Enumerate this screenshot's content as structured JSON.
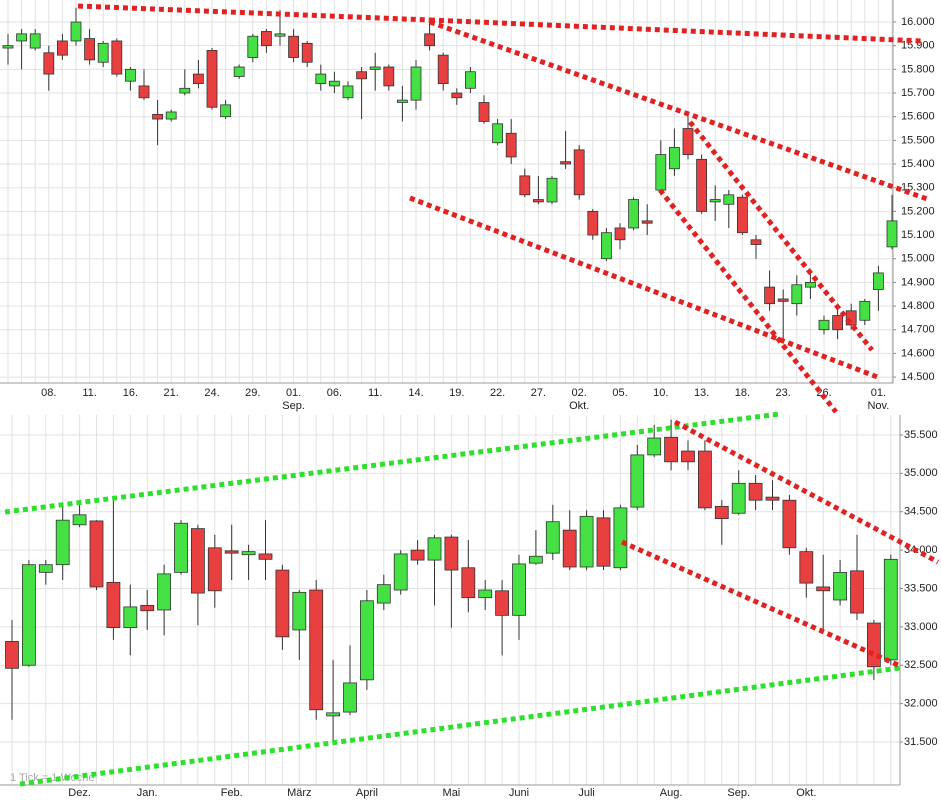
{
  "chart_data": [
    {
      "type": "candlestick",
      "categories": [
        null,
        null,
        null,
        "08.",
        null,
        null,
        "11.",
        null,
        null,
        "16.",
        null,
        null,
        "21.",
        null,
        null,
        "24.",
        null,
        null,
        "29.",
        null,
        null,
        "01.",
        null,
        null,
        "06.",
        null,
        null,
        "11.",
        null,
        null,
        "14.",
        null,
        null,
        "19.",
        null,
        null,
        "22.",
        null,
        null,
        "27.",
        null,
        null,
        "02.",
        null,
        null,
        "05.",
        null,
        null,
        "10.",
        null,
        null,
        "13.",
        null,
        null,
        "18.",
        null,
        null,
        "23.",
        null,
        null,
        "26.",
        null,
        null,
        null,
        "01.",
        null
      ],
      "months": [
        null,
        null,
        null,
        null,
        null,
        null,
        null,
        null,
        null,
        null,
        null,
        null,
        null,
        null,
        null,
        null,
        null,
        null,
        null,
        null,
        null,
        "Sep.",
        null,
        null,
        null,
        null,
        null,
        null,
        null,
        null,
        null,
        null,
        null,
        null,
        null,
        null,
        null,
        null,
        null,
        null,
        null,
        null,
        "Okt.",
        null,
        null,
        null,
        null,
        null,
        null,
        null,
        null,
        null,
        null,
        null,
        null,
        null,
        null,
        null,
        null,
        null,
        null,
        null,
        null,
        null,
        "Nov.",
        null
      ],
      "open": [
        15.89,
        15.92,
        15.89,
        15.87,
        15.92,
        15.92,
        15.93,
        15.83,
        15.92,
        15.75,
        15.73,
        15.61,
        15.59,
        15.7,
        15.78,
        15.88,
        15.6,
        15.77,
        15.85,
        15.96,
        15.94,
        15.94,
        15.91,
        15.74,
        15.73,
        15.68,
        15.79,
        15.8,
        15.81,
        15.66,
        15.67,
        15.95,
        15.86,
        15.7,
        15.72,
        15.66,
        15.49,
        15.53,
        15.35,
        15.25,
        15.24,
        15.41,
        15.46,
        15.2,
        15.0,
        15.13,
        15.13,
        15.16,
        15.29,
        15.38,
        15.55,
        15.42,
        15.24,
        15.23,
        15.26,
        15.08,
        14.88,
        14.83,
        14.81,
        14.88,
        14.7,
        14.76,
        14.78,
        14.74,
        14.87,
        15.05
      ],
      "high": [
        15.95,
        15.97,
        15.97,
        15.9,
        15.95,
        16.06,
        15.97,
        15.92,
        15.93,
        15.81,
        15.8,
        15.67,
        15.63,
        15.8,
        15.84,
        15.89,
        15.67,
        15.82,
        15.95,
        15.97,
        16.05,
        15.97,
        15.92,
        15.82,
        15.79,
        15.75,
        15.81,
        15.87,
        15.82,
        15.73,
        15.84,
        16.0,
        15.87,
        15.72,
        15.81,
        15.69,
        15.59,
        15.59,
        15.38,
        15.35,
        15.35,
        15.54,
        15.48,
        15.21,
        15.13,
        15.15,
        15.26,
        15.23,
        15.5,
        15.55,
        15.62,
        15.44,
        15.31,
        15.29,
        15.27,
        15.1,
        14.95,
        14.87,
        14.93,
        14.94,
        14.76,
        14.81,
        14.81,
        14.83,
        14.97,
        15.27
      ],
      "low": [
        15.82,
        15.8,
        15.88,
        15.71,
        15.84,
        15.9,
        15.82,
        15.81,
        15.77,
        15.71,
        15.67,
        15.48,
        15.58,
        15.69,
        15.72,
        15.63,
        15.59,
        15.76,
        15.83,
        15.87,
        15.9,
        15.83,
        15.81,
        15.71,
        15.7,
        15.67,
        15.59,
        15.71,
        15.71,
        15.58,
        15.63,
        15.88,
        15.71,
        15.65,
        15.7,
        15.57,
        15.48,
        15.4,
        15.26,
        15.23,
        15.23,
        15.38,
        15.25,
        15.08,
        14.99,
        15.04,
        15.12,
        15.1,
        15.27,
        15.35,
        15.42,
        15.19,
        15.16,
        15.13,
        15.1,
        15.0,
        14.78,
        14.66,
        14.76,
        14.83,
        14.68,
        14.66,
        14.7,
        14.72,
        14.78,
        15.04
      ],
      "close": [
        15.9,
        15.95,
        15.95,
        15.78,
        15.86,
        16.0,
        15.84,
        15.91,
        15.78,
        15.8,
        15.68,
        15.59,
        15.62,
        15.72,
        15.74,
        15.64,
        15.65,
        15.81,
        15.94,
        15.9,
        15.95,
        15.85,
        15.83,
        15.78,
        15.75,
        15.73,
        15.76,
        15.81,
        15.73,
        15.67,
        15.81,
        15.9,
        15.74,
        15.68,
        15.79,
        15.58,
        15.57,
        15.43,
        15.27,
        15.24,
        15.34,
        15.4,
        15.27,
        15.1,
        15.11,
        15.08,
        15.25,
        15.15,
        15.44,
        15.47,
        15.44,
        15.2,
        15.25,
        15.27,
        15.11,
        15.06,
        14.81,
        14.82,
        14.89,
        14.9,
        14.74,
        14.7,
        14.72,
        14.82,
        14.94,
        15.16
      ],
      "up_color": "#44e044",
      "down_color": "#e84040",
      "ylim": [
        14.475,
        16.093
      ],
      "yticks": [
        {
          "value": 14.5,
          "label": "14.500"
        },
        {
          "value": 14.6,
          "label": "14.600"
        },
        {
          "value": 14.7,
          "label": "14.700"
        },
        {
          "value": 14.8,
          "label": "14.800"
        },
        {
          "value": 14.9,
          "label": "14.900"
        },
        {
          "value": 15.0,
          "label": "15.000"
        },
        {
          "value": 15.1,
          "label": "15.100"
        },
        {
          "value": 15.2,
          "label": "15.200"
        },
        {
          "value": 15.3,
          "label": "15.300"
        },
        {
          "value": 15.4,
          "label": "15.400"
        },
        {
          "value": 15.5,
          "label": "15.500"
        },
        {
          "value": 15.6,
          "label": "15.600"
        },
        {
          "value": 15.7,
          "label": "15.700"
        },
        {
          "value": 15.8,
          "label": "15.800"
        },
        {
          "value": 15.9,
          "label": "15.900"
        },
        {
          "value": 16.0,
          "label": "16.000"
        }
      ],
      "grid": true
    },
    {
      "type": "candlestick",
      "categories": [
        null,
        null,
        null,
        null,
        "Dez.",
        null,
        null,
        null,
        "Jan.",
        null,
        null,
        null,
        null,
        "Feb.",
        null,
        null,
        null,
        "März",
        null,
        null,
        null,
        "April",
        null,
        null,
        null,
        null,
        "Mai",
        null,
        null,
        null,
        "Juni",
        null,
        null,
        null,
        "Juli",
        null,
        null,
        null,
        null,
        "Aug.",
        null,
        null,
        null,
        "Sep.",
        null,
        null,
        null,
        "Okt.",
        null,
        null,
        null,
        null,
        null
      ],
      "open": [
        32.81,
        32.5,
        33.71,
        33.81,
        34.33,
        34.38,
        33.58,
        32.99,
        33.28,
        33.22,
        33.71,
        34.28,
        34.03,
        33.99,
        33.94,
        33.95,
        33.74,
        32.96,
        33.48,
        31.84,
        31.89,
        32.31,
        33.31,
        33.48,
        34.0,
        33.87,
        34.17,
        33.77,
        33.38,
        33.47,
        33.15,
        33.83,
        33.96,
        34.26,
        33.78,
        34.42,
        33.77,
        34.56,
        35.24,
        35.47,
        35.29,
        35.29,
        34.57,
        34.48,
        34.87,
        34.69,
        34.65,
        33.98,
        33.52,
        33.35,
        33.73,
        33.05,
        32.57
      ],
      "high": [
        33.09,
        33.87,
        33.87,
        34.59,
        34.65,
        34.39,
        34.65,
        33.55,
        33.48,
        33.81,
        34.39,
        34.33,
        34.2,
        34.33,
        34.07,
        34.39,
        33.81,
        33.48,
        33.61,
        32.57,
        32.76,
        33.48,
        33.68,
        34.0,
        34.13,
        34.2,
        34.2,
        34.13,
        33.61,
        33.61,
        33.94,
        34.26,
        34.59,
        34.52,
        34.52,
        34.52,
        34.59,
        35.37,
        35.63,
        35.7,
        35.43,
        35.43,
        34.65,
        35.04,
        34.98,
        34.91,
        34.72,
        34.03,
        33.94,
        33.87,
        34.2,
        33.09,
        33.94
      ],
      "low": [
        31.79,
        32.48,
        33.55,
        33.61,
        34.3,
        33.48,
        32.83,
        32.63,
        32.96,
        32.89,
        33.68,
        33.02,
        33.25,
        33.61,
        33.61,
        33.61,
        32.7,
        32.57,
        31.79,
        31.46,
        31.85,
        32.18,
        33.22,
        33.42,
        33.81,
        33.28,
        32.99,
        33.19,
        33.22,
        32.63,
        32.83,
        33.81,
        33.87,
        33.74,
        33.74,
        33.74,
        33.74,
        34.52,
        35.21,
        35.04,
        35.04,
        34.52,
        34.07,
        34.46,
        34.52,
        34.52,
        33.94,
        33.38,
        32.96,
        33.28,
        33.09,
        32.31,
        32.5
      ],
      "close": [
        32.46,
        33.81,
        33.81,
        34.39,
        34.46,
        33.52,
        32.99,
        33.26,
        33.21,
        33.69,
        34.35,
        33.44,
        33.47,
        33.96,
        33.98,
        33.88,
        32.87,
        33.45,
        31.92,
        31.88,
        32.27,
        33.34,
        33.55,
        33.95,
        33.87,
        34.16,
        33.74,
        33.38,
        33.48,
        33.15,
        33.82,
        33.92,
        34.37,
        33.78,
        34.44,
        33.79,
        34.55,
        35.24,
        35.46,
        35.15,
        35.15,
        34.55,
        34.41,
        34.87,
        34.65,
        34.65,
        34.03,
        33.57,
        33.47,
        33.71,
        33.18,
        32.48,
        33.88
      ],
      "up_color": "#44e044",
      "down_color": "#e84040",
      "ylim": [
        30.94,
        35.76
      ],
      "yticks": [
        {
          "value": 31.5,
          "label": "31.500"
        },
        {
          "value": 32.0,
          "label": "32.000"
        },
        {
          "value": 32.5,
          "label": "32.500"
        },
        {
          "value": 33.0,
          "label": "33.000"
        },
        {
          "value": 33.5,
          "label": "33.500"
        },
        {
          "value": 34.0,
          "label": "34.000"
        },
        {
          "value": 34.5,
          "label": "34.500"
        },
        {
          "value": 35.0,
          "label": "35.000"
        },
        {
          "value": 35.5,
          "label": "35.500"
        }
      ],
      "grid": true,
      "note": "1 Tick = 1 Woche"
    }
  ]
}
